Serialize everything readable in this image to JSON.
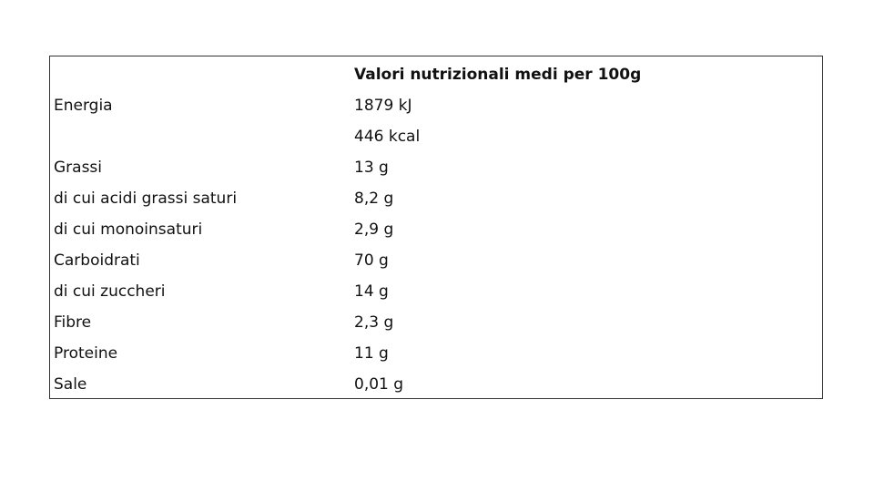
{
  "table": {
    "header": [
      "",
      "Valori nutrizionali medi per 100g"
    ],
    "rows": [
      [
        "Energia",
        "1879 kJ"
      ],
      [
        "",
        "446 kcal"
      ],
      [
        "Grassi",
        "13 g"
      ],
      [
        "di cui acidi grassi saturi",
        "8,2 g"
      ],
      [
        "di cui monoinsaturi",
        "2,9 g"
      ],
      [
        "Carboidrati",
        "70 g"
      ],
      [
        "di cui zuccheri",
        "14 g"
      ],
      [
        "Fibre",
        "2,3 g"
      ],
      [
        "Proteine",
        "11 g"
      ],
      [
        "Sale",
        "0,01 g"
      ]
    ]
  }
}
